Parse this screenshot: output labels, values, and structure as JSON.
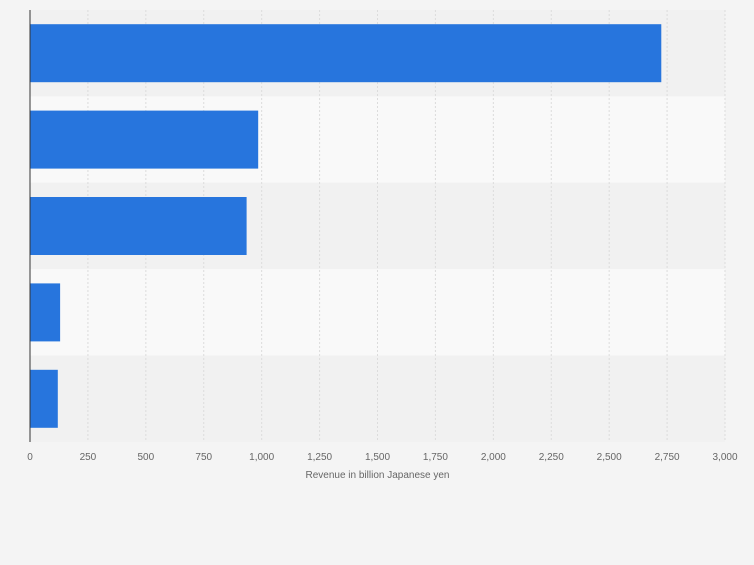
{
  "colors": {
    "background": "#f4f4f4",
    "band_light": "#f9f9f9",
    "band_dark": "#f1f1f1",
    "bar": "#2775dd",
    "grid": "#dcdcdc",
    "axis": "#333333",
    "tick_text": "#666666"
  },
  "chart_data": {
    "type": "bar",
    "orientation": "horizontal",
    "title": "",
    "xlabel": "Revenue in billion Japanese yen",
    "ylabel": "",
    "categories": [
      "",
      "",
      "",
      "",
      ""
    ],
    "values": [
      2725,
      985,
      935,
      130,
      120
    ],
    "xlim": [
      0,
      3000
    ],
    "xticks": [
      0,
      250,
      500,
      750,
      1000,
      1250,
      1500,
      1750,
      2000,
      2250,
      2500,
      2750,
      3000
    ],
    "xtick_labels": [
      "0",
      "250",
      "500",
      "750",
      "1,000",
      "1,250",
      "1,500",
      "1,750",
      "2,000",
      "2,250",
      "2,500",
      "2,750",
      "3,000"
    ],
    "grid": true,
    "legend": "none"
  }
}
